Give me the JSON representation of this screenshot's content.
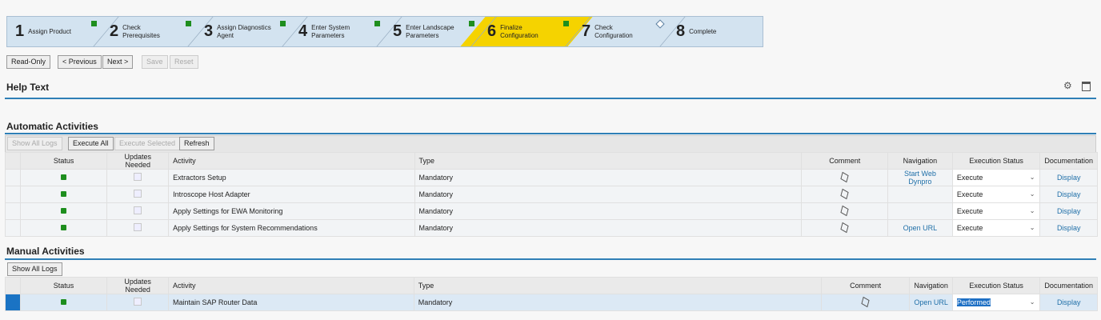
{
  "roadmap": [
    {
      "num": "1",
      "label": "Assign Product",
      "state": "done"
    },
    {
      "num": "2",
      "label": "Check Prerequisites",
      "state": "done"
    },
    {
      "num": "3",
      "label": "Assign Diagnostics Agent",
      "state": "done"
    },
    {
      "num": "4",
      "label": "Enter System Parameters",
      "state": "done"
    },
    {
      "num": "5",
      "label": "Enter Landscape Parameters",
      "state": "done"
    },
    {
      "num": "6",
      "label": "Finalize Configuration",
      "state": "active"
    },
    {
      "num": "7",
      "label": "Check Configuration",
      "state": "open"
    },
    {
      "num": "8",
      "label": "Complete",
      "state": "none"
    }
  ],
  "toolbar": {
    "read_only": "Read-Only",
    "previous": "< Previous",
    "next": "Next >",
    "save": "Save",
    "reset": "Reset"
  },
  "help_text": "Help Text",
  "auto": {
    "title": "Automatic Activities",
    "show_logs": "Show All Logs",
    "execute_all": "Execute All",
    "execute_selected": "Execute Selected",
    "refresh": "Refresh"
  },
  "manual": {
    "title": "Manual Activities",
    "show_logs": "Show All Logs"
  },
  "columns": [
    "Status",
    "Updates Needed",
    "Activity",
    "Type",
    "Comment",
    "Navigation",
    "Execution Status",
    "Documentation"
  ],
  "auto_rows": [
    {
      "activity": "Extractors Setup",
      "type": "Mandatory",
      "navigation": "Start Web Dynpro",
      "exec": "Execute",
      "doc": "Display"
    },
    {
      "activity": "Introscope Host Adapter",
      "type": "Mandatory",
      "navigation": "",
      "exec": "Execute",
      "doc": "Display"
    },
    {
      "activity": "Apply Settings for EWA Monitoring",
      "type": "Mandatory",
      "navigation": "",
      "exec": "Execute",
      "doc": "Display"
    },
    {
      "activity": "Apply Settings for System Recommendations",
      "type": "Mandatory",
      "navigation": "Open URL",
      "exec": "Execute",
      "doc": "Display"
    }
  ],
  "manual_rows": [
    {
      "activity": "Maintain SAP Router Data",
      "type": "Mandatory",
      "navigation": "Open URL",
      "exec": "Performed",
      "doc": "Display"
    }
  ]
}
